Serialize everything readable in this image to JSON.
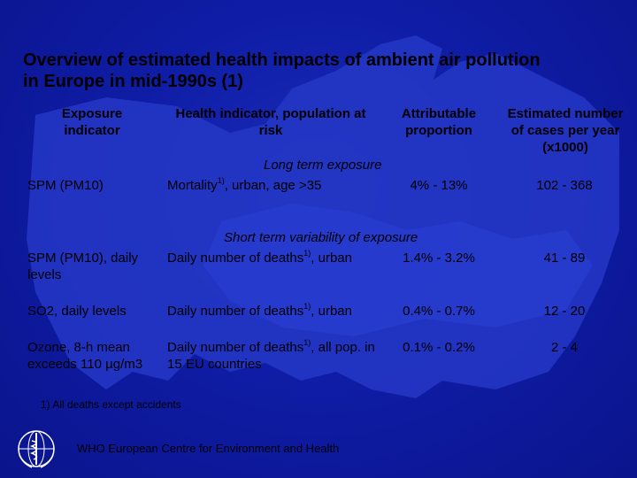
{
  "slide": {
    "title": "Overview of estimated health impacts of ambient air pollution in Europe in mid-1990s (1)",
    "headers": {
      "exposure": "Exposure indicator",
      "health": "Health indicator, population at risk",
      "attributable": "Attributable proportion",
      "cases": "Estimated number of cases per year (x1000)"
    },
    "sections": {
      "long_term": "Long term exposure",
      "short_term": "Short term variability of exposure"
    },
    "rows": [
      {
        "exposure": "SPM (PM10)",
        "health_pre": "Mortality",
        "sup": "1)",
        "health_post": ", urban, age >35",
        "proportion": "4% - 13%",
        "cases": "102 - 368"
      },
      {
        "exposure": "SPM (PM10), daily levels",
        "health_pre": "Daily number of deaths",
        "sup": "1)",
        "health_post": ", urban",
        "proportion": "1.4% - 3.2%",
        "cases": "41 - 89"
      },
      {
        "exposure": "SO2, daily levels",
        "health_pre": "Daily number of deaths",
        "sup": "1)",
        "health_post": ", urban",
        "proportion": "0.4% - 0.7%",
        "cases": "12 - 20"
      },
      {
        "exposure": "Ozone, 8-h mean exceeds 110 µg/m3",
        "health_pre": "Daily number of deaths",
        "sup": "1)",
        "health_post": ", all pop. in 15 EU countries",
        "proportion": "0.1% - 0.2%",
        "cases": "2 - 4"
      }
    ],
    "footnote": "1) All deaths except accidents",
    "organization": "WHO European Centre for Environment and Health",
    "colors": {
      "background": "#0e1a9c",
      "map": "#2a3fd0",
      "text": "#000000"
    },
    "logo_icon": "who-emblem-icon"
  }
}
